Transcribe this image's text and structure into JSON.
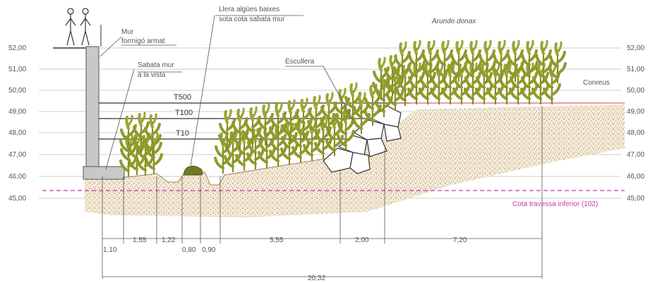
{
  "levels": [
    "52,00",
    "51,00",
    "50,00",
    "49,00",
    "48,00",
    "47,00",
    "46,00",
    "45,00"
  ],
  "labels": {
    "mur": "Mur",
    "formigo": "formigó armat",
    "sabata_mur": "Sabata mur",
    "a_la_vista": "a la vista",
    "llera": "Llera algües baixes",
    "sota_cota": "sota cota sabata mur",
    "escullera": "Escullera",
    "arundo": "Arundo donax",
    "conreus": "Conreus",
    "cota_travessa": "Cota travessa inferior (102)"
  },
  "flood_lines": [
    "T500",
    "T100",
    "T10"
  ],
  "dimensions": [
    "1,10",
    "1,55",
    "1,22",
    "0,80",
    "0,90",
    "5,55",
    "2,00",
    "7,20",
    "20,32"
  ],
  "colors": {
    "vegetation": "#8f9a2a",
    "soil": "#c8a068",
    "wall": "#c8c8c8",
    "magenta": "#cc33aa",
    "red_line": "#d04040"
  }
}
